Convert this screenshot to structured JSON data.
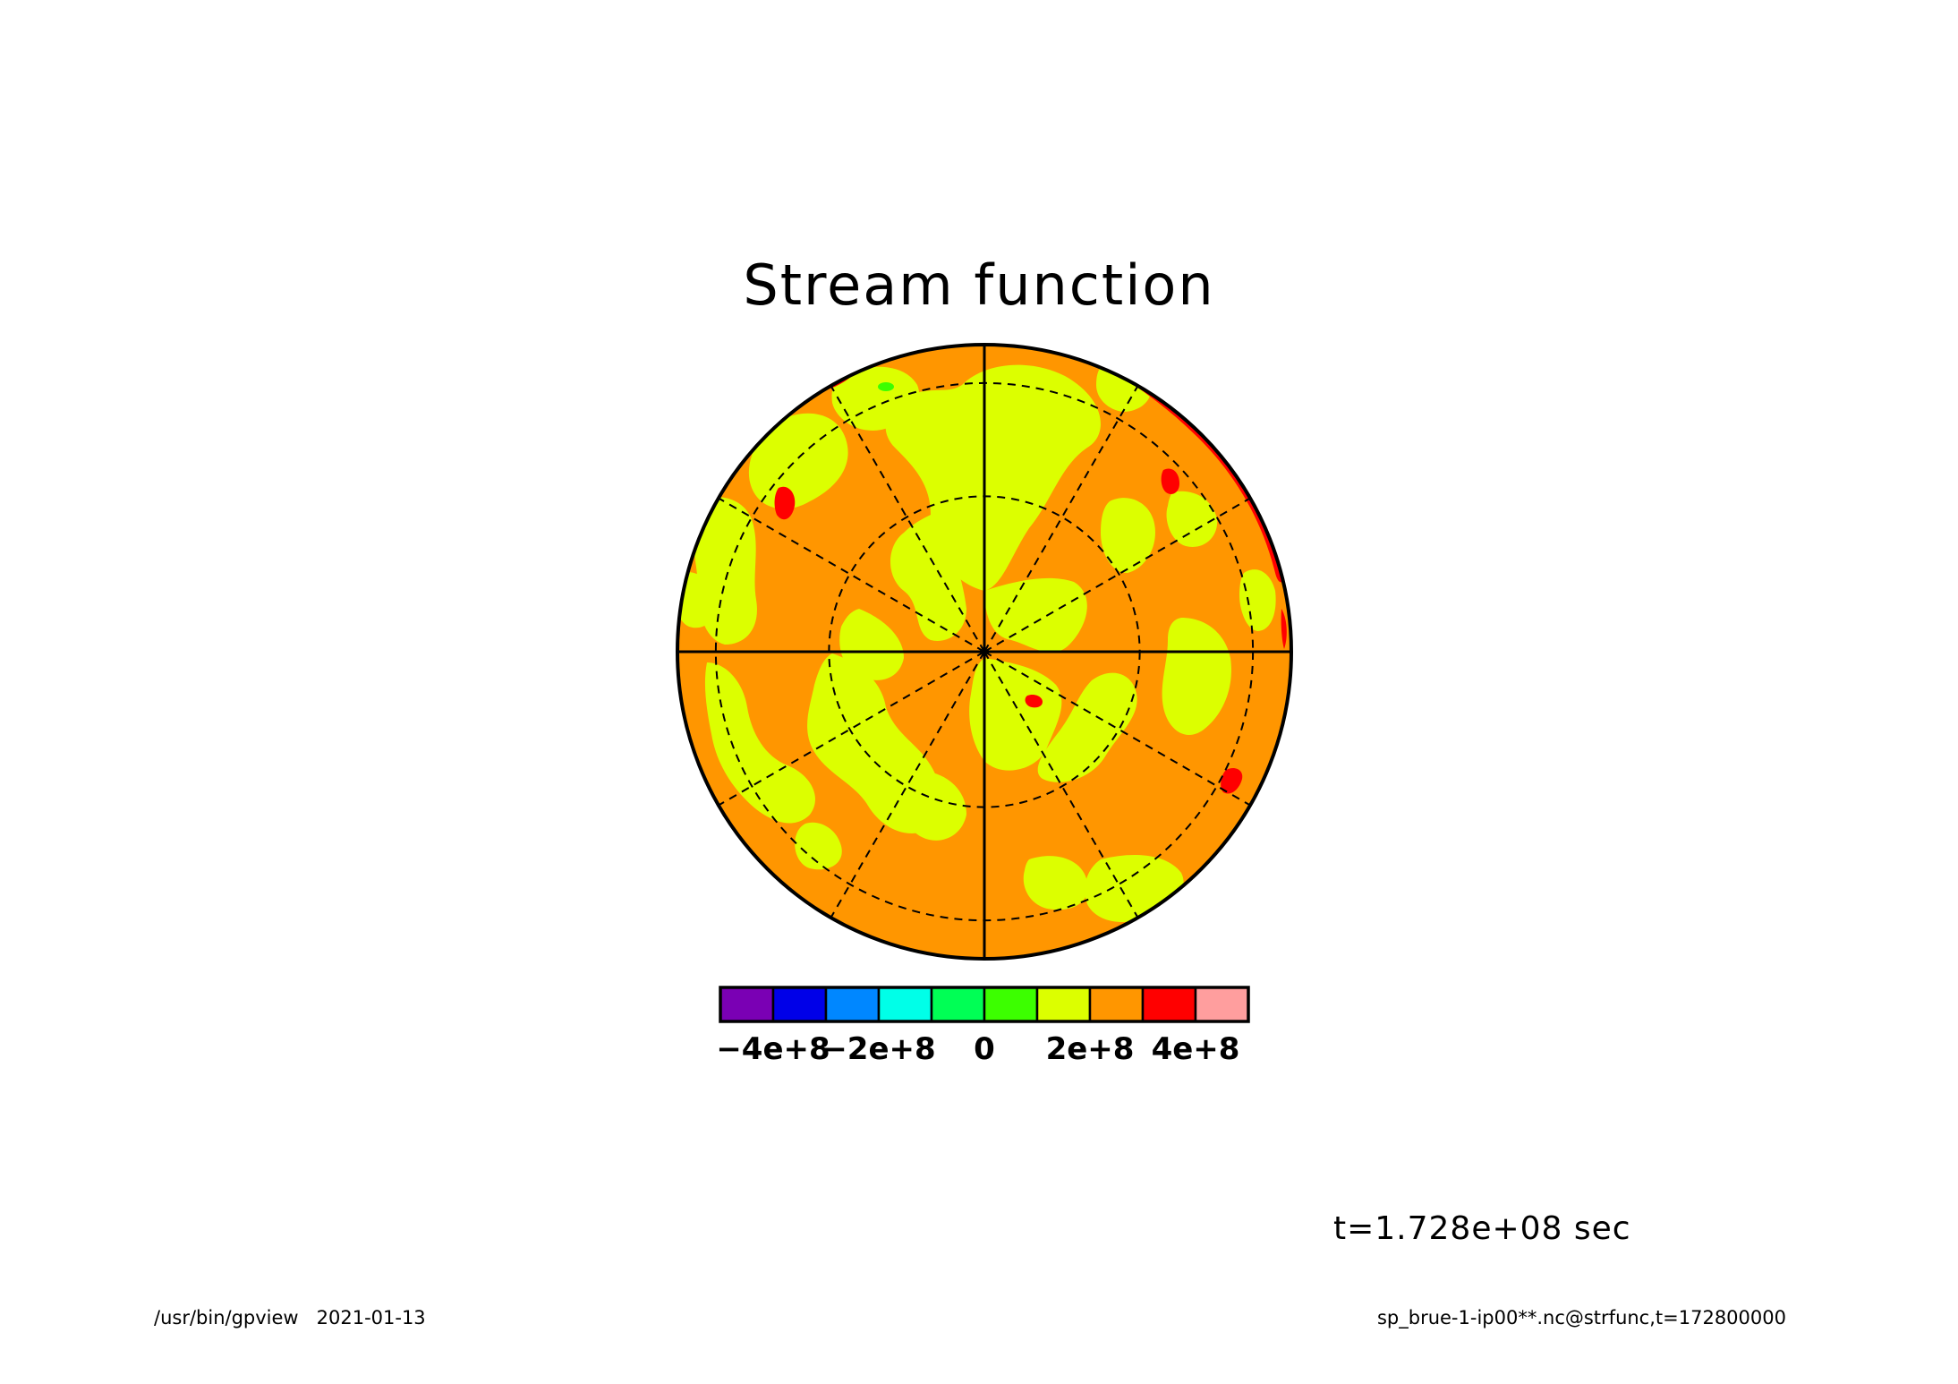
{
  "chart_data": {
    "type": "heatmap",
    "title": "Stream function",
    "projection": "polar orthographic disc",
    "colorbar": {
      "levels": [
        -500000000.0,
        -400000000.0,
        -300000000.0,
        -200000000.0,
        -100000000.0,
        0,
        100000000.0,
        200000000.0,
        300000000.0,
        400000000.0,
        500000000.0
      ],
      "colors": [
        "#7a00b4",
        "#0000e8",
        "#0087ff",
        "#00ffe8",
        "#00ff55",
        "#3cff00",
        "#dcff00",
        "#ff9600",
        "#ff0000",
        "#ff9e9e"
      ],
      "tick_labels": [
        "−4e+8",
        "−2e+8",
        "0",
        "2e+8",
        "4e+8"
      ],
      "tick_values": [
        -400000000.0,
        -200000000.0,
        0,
        200000000.0,
        400000000.0
      ]
    },
    "field_summary": {
      "dominant_band": [
        200000000.0,
        300000000.0
      ],
      "secondary_band": [
        100000000.0,
        200000000.0
      ],
      "max_band": [
        300000000.0,
        400000000.0
      ],
      "min_band": [
        0,
        100000000.0
      ]
    },
    "grid": true,
    "grid_style": "dashed latitude circles and meridians every 30 degrees"
  },
  "time_label": "t=1.728e+08 sec",
  "footer": {
    "left": "/usr/bin/gpview   2021-01-13",
    "right": "sp_brue-1-ip00**.nc@strfunc,t=172800000"
  },
  "colors": {
    "orange": "#ff9600",
    "yellow": "#dcff00",
    "red": "#ff0000",
    "green": "#3cff00"
  }
}
